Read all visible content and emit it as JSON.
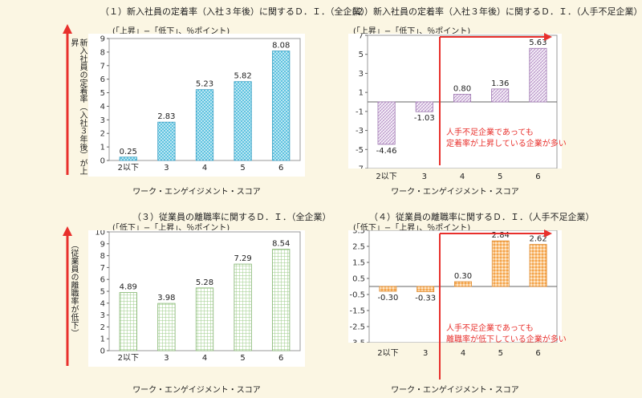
{
  "chart_data": [
    {
      "type": "bar",
      "title": "（１）新入社員の定着率（入社３年後）に関するＤ．Ｉ．（全企業）",
      "unit_note": "(「上昇」−「低下」、％ポイント)",
      "xlabel": "ワーク・エンゲイジメント・スコア",
      "ylabel": "新入社員の定着率（入社３年後）が上昇",
      "categories": [
        "2以下",
        "3",
        "4",
        "5",
        "6"
      ],
      "values": [
        0.25,
        2.83,
        5.23,
        5.82,
        8.08
      ],
      "value_labels": [
        "0.25",
        "2.83",
        "5.23",
        "5.82",
        "8.08"
      ],
      "yticks": [
        "0",
        "1",
        "2",
        "3",
        "4",
        "5",
        "6",
        "7",
        "8",
        "9"
      ],
      "ylim": [
        0,
        9
      ],
      "pattern": "blue-dots",
      "grid": false
    },
    {
      "type": "bar",
      "title": "（２）新入社員の定着率（入社３年後）に関するＤ．Ｉ．（人手不足企業）",
      "unit_note": "(「上昇」−「低下」、％ポイント)",
      "xlabel": "ワーク・エンゲイジメント・スコア",
      "categories": [
        "2以下",
        "3",
        "4",
        "5",
        "6"
      ],
      "values": [
        -4.46,
        -1.03,
        0.8,
        1.36,
        5.63
      ],
      "value_labels": [
        "-4.46",
        "-1.03",
        "0.80",
        "1.36",
        "5.63"
      ],
      "yticks": [
        "7",
        "5",
        "3",
        "1",
        "-1",
        "-3",
        "-5",
        "-7"
      ],
      "ylim": [
        -7,
        7
      ],
      "pattern": "purple-hatch",
      "annotation": [
        "人手不足企業であっても",
        "定着率が上昇している企業が多い"
      ],
      "grid": false
    },
    {
      "type": "bar",
      "title": "（３）従業員の離職率に関するＤ．Ｉ．（全企業）",
      "unit_note": "(「低下」−「上昇」、％ポイント)",
      "xlabel": "ワーク・エンゲイジメント・スコア",
      "ylabel": "（従業員の離職率が低下）",
      "categories": [
        "2以下",
        "3",
        "4",
        "5",
        "6"
      ],
      "values": [
        4.89,
        3.98,
        5.28,
        7.29,
        8.54
      ],
      "value_labels": [
        "4.89",
        "3.98",
        "5.28",
        "7.29",
        "8.54"
      ],
      "yticks": [
        "0",
        "1",
        "2",
        "3",
        "4",
        "5",
        "6",
        "7",
        "8",
        "9",
        "10"
      ],
      "ylim": [
        0,
        10
      ],
      "pattern": "green-grid",
      "grid": false
    },
    {
      "type": "bar",
      "title": "（４）従業員の離職率に関するＤ．Ｉ．（人手不足企業）",
      "unit_note": "(「低下」−「上昇」、％ポイント)",
      "xlabel": "ワーク・エンゲイジメント・スコア",
      "categories": [
        "2以下",
        "3",
        "4",
        "5",
        "6"
      ],
      "values": [
        -0.3,
        -0.33,
        0.3,
        2.84,
        2.62
      ],
      "value_labels": [
        "-0.30",
        "-0.33",
        "0.30",
        "2.84",
        "2.62"
      ],
      "yticks": [
        "3.5",
        "2.5",
        "1.5",
        "0.5",
        "-0.5",
        "-1.5",
        "-2.5",
        "-3.5"
      ],
      "ylim": [
        -3.5,
        3.5
      ],
      "pattern": "orange-diamond",
      "annotation": [
        "人手不足企業であっても",
        "離職率が低下している企業が多い"
      ],
      "grid": false
    }
  ],
  "colors": {
    "background": "#fbf6e3",
    "arrow": "#e8302c",
    "annotation_text": "#e8302c"
  }
}
